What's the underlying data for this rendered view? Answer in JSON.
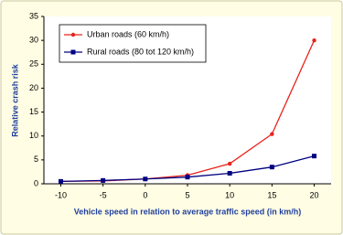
{
  "chart_data": {
    "type": "line",
    "x": [
      -10,
      -5,
      0,
      5,
      10,
      15,
      20
    ],
    "series": [
      {
        "name": "Urban roads (60 km/h)",
        "color": "#e8231a",
        "marker": "circle",
        "values": [
          0.5,
          0.6,
          1,
          1.8,
          4.2,
          10.4,
          30
        ]
      },
      {
        "name": "Rural roads (80 tot 120 km/h)",
        "color": "#000080",
        "marker": "square",
        "values": [
          0.5,
          0.7,
          1,
          1.4,
          2.2,
          3.5,
          5.8
        ]
      }
    ],
    "x_label": "Vehicle speed in relation to average traffic speed (in km/h)",
    "y_label": "Relative crash risk",
    "xlim": [
      -12,
      22
    ],
    "xticks": [
      -10,
      -5,
      0,
      5,
      10,
      15,
      20
    ],
    "ylim": [
      0,
      35
    ],
    "yticks": [
      0,
      5,
      10,
      15,
      20,
      25,
      30,
      35
    ],
    "grid": false,
    "legend": "upper left"
  }
}
